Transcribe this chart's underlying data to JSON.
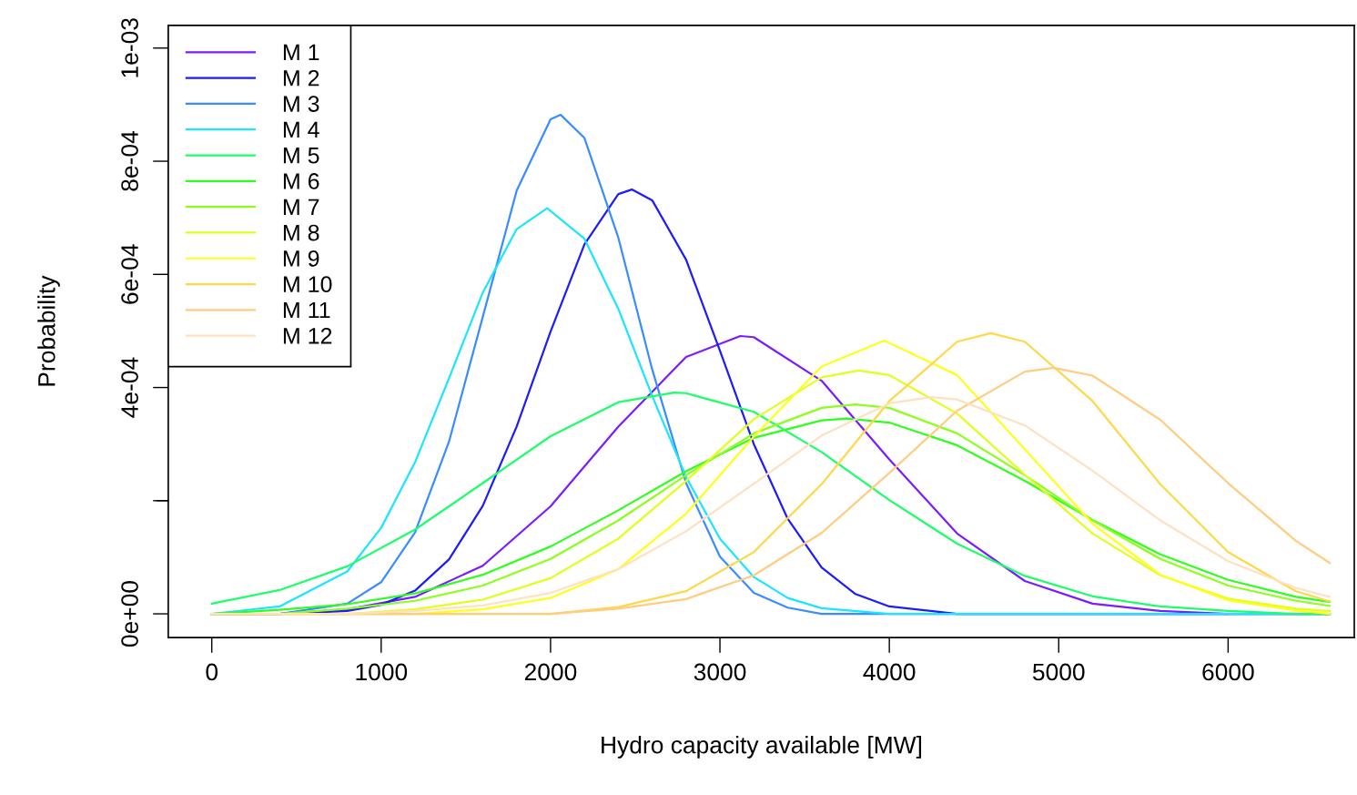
{
  "chart_data": {
    "type": "line",
    "xlabel": "Hydro capacity available [MW]",
    "ylabel": "Probability",
    "xlim": [
      -257,
      6745
    ],
    "ylim": [
      -4.2e-05,
      0.00104
    ],
    "xticks": [
      0,
      1000,
      2000,
      3000,
      4000,
      5000,
      6000
    ],
    "yticks": [
      {
        "value": 0,
        "label": "0e+00"
      },
      {
        "value": 0.0002,
        "label": null
      },
      {
        "value": 0.0004,
        "label": "4e-04"
      },
      {
        "value": 0.0006,
        "label": "6e-04"
      },
      {
        "value": 0.0008,
        "label": "8e-04"
      },
      {
        "value": 0.001,
        "label": "1e-03"
      }
    ],
    "grid": false,
    "legend": "top left",
    "marker": "none",
    "line_style": "solid",
    "series": [
      {
        "name": "M 1",
        "color": "#7a1cff",
        "x": [
          0,
          400,
          800,
          1200,
          1600,
          2000,
          2400,
          2800,
          3120,
          3200,
          3600,
          4000,
          4400,
          4800,
          5200,
          5600,
          6000,
          6400,
          6600
        ],
        "values": [
          0,
          0,
          8e-06,
          3e-05,
          8.5e-05,
          0.00019,
          0.000331,
          0.000454,
          0.000491,
          0.000489,
          0.000412,
          0.000273,
          0.000142,
          5.8e-05,
          1.8e-05,
          5e-06,
          0,
          0,
          0
        ]
      },
      {
        "name": "M 2",
        "color": "#1c1cff",
        "x": [
          0,
          400,
          800,
          1000,
          1200,
          1400,
          1600,
          1800,
          2000,
          2200,
          2400,
          2480,
          2600,
          2800,
          3000,
          3200,
          3400,
          3600,
          3800,
          4000,
          4400,
          4800,
          5200,
          5600,
          6000
        ],
        "values": [
          0,
          0,
          5e-06,
          1.6e-05,
          4.1e-05,
          9.6e-05,
          0.000191,
          0.000331,
          0.000499,
          0.000653,
          0.000742,
          0.00075,
          0.000731,
          0.000626,
          0.000465,
          0.0003,
          0.000168,
          8.2e-05,
          3.5e-05,
          1.3e-05,
          0,
          0,
          0,
          0,
          0
        ]
      },
      {
        "name": "M 3",
        "color": "#3a8cff",
        "x": [
          0,
          400,
          800,
          1000,
          1200,
          1400,
          1600,
          1800,
          2000,
          2060,
          2200,
          2400,
          2600,
          2800,
          3000,
          3200,
          3400,
          3600,
          4000,
          4400,
          4800,
          5200,
          5600,
          6000,
          6400,
          6600
        ],
        "values": [
          0,
          0,
          1.8e-05,
          5.6e-05,
          0.000144,
          0.000304,
          0.000525,
          0.000748,
          0.000874,
          0.000882,
          0.000841,
          0.000665,
          0.000432,
          0.000231,
          0.000101,
          3.7e-05,
          1.1e-05,
          0,
          0,
          0,
          0,
          0,
          0,
          0,
          0,
          0
        ]
      },
      {
        "name": "M 4",
        "color": "#1ce5ff",
        "x": [
          0,
          400,
          800,
          1000,
          1200,
          1400,
          1600,
          1800,
          1980,
          2200,
          2400,
          2600,
          2800,
          3000,
          3200,
          3400,
          3600,
          4000,
          4400,
          4800,
          5200,
          5600,
          6000,
          6400,
          6600
        ],
        "values": [
          0,
          1.3e-05,
          7.5e-05,
          0.000152,
          0.000268,
          0.000416,
          0.000568,
          0.00068,
          0.000717,
          0.000663,
          0.000539,
          0.000385,
          0.000242,
          0.000133,
          6.5e-05,
          2.8e-05,
          1e-05,
          0,
          0,
          0,
          0,
          0,
          0,
          0,
          0
        ]
      },
      {
        "name": "M 5",
        "color": "#1cff6a",
        "x": [
          0,
          400,
          800,
          1200,
          1600,
          2000,
          2400,
          2730,
          2800,
          3200,
          3600,
          4000,
          4400,
          4800,
          5200,
          5600,
          6000,
          6400,
          6600
        ],
        "values": [
          1.8e-05,
          4.2e-05,
          8.4e-05,
          0.000149,
          0.000231,
          0.000314,
          0.000374,
          0.000391,
          0.00039,
          0.000357,
          0.000286,
          0.000201,
          0.000124,
          6.7e-05,
          3.1e-05,
          1.3e-05,
          5e-06,
          0,
          0
        ]
      },
      {
        "name": "M 6",
        "color": "#2eff1c",
        "x": [
          0,
          400,
          800,
          1200,
          1600,
          2000,
          2400,
          2800,
          3200,
          3600,
          3750,
          4000,
          4400,
          4800,
          5200,
          5600,
          6000,
          6400,
          6600
        ],
        "values": [
          0,
          7e-06,
          1.7e-05,
          3.6e-05,
          6.9e-05,
          0.000119,
          0.000183,
          0.000252,
          0.000311,
          0.000342,
          0.000345,
          0.000338,
          0.000298,
          0.000235,
          0.000166,
          0.000105,
          6e-05,
          3e-05,
          2.1e-05
        ]
      },
      {
        "name": "M 7",
        "color": "#8cff1c",
        "x": [
          0,
          400,
          800,
          1200,
          1600,
          2000,
          2400,
          2800,
          3200,
          3600,
          3800,
          4000,
          4400,
          4800,
          5200,
          5600,
          6000,
          6400,
          6600
        ],
        "values": [
          0,
          0,
          9e-06,
          2.3e-05,
          5e-05,
          9.7e-05,
          0.000165,
          0.000245,
          0.000319,
          0.000364,
          0.00037,
          0.000364,
          0.000319,
          0.000245,
          0.000165,
          9.7e-05,
          5e-05,
          2.3e-05,
          1.4e-05
        ]
      },
      {
        "name": "M 8",
        "color": "#e0ff1c",
        "x": [
          0,
          400,
          800,
          1200,
          1600,
          2000,
          2400,
          2800,
          3200,
          3600,
          3820,
          4000,
          4400,
          4800,
          5200,
          5600,
          6000,
          6400,
          6600
        ],
        "values": [
          0,
          0,
          0,
          8e-06,
          2.5e-05,
          6.3e-05,
          0.000133,
          0.000235,
          0.000344,
          0.000418,
          0.00043,
          0.000422,
          0.000354,
          0.000246,
          0.000142,
          6.8e-05,
          2.7e-05,
          9e-06,
          5e-06
        ]
      },
      {
        "name": "M 9",
        "color": "#ffff1c",
        "x": [
          0,
          400,
          800,
          1200,
          1600,
          2000,
          2400,
          2800,
          3200,
          3600,
          3970,
          4400,
          4800,
          5200,
          5600,
          6000,
          6400,
          6600
        ],
        "values": [
          0,
          0,
          0,
          0,
          8e-06,
          2.8e-05,
          7.9e-05,
          0.000177,
          0.000313,
          0.000437,
          0.000483,
          0.000422,
          0.000291,
          0.000159,
          6.9e-05,
          2.4e-05,
          6e-06,
          0
        ]
      },
      {
        "name": "M 10",
        "color": "#ffd84a",
        "x": [
          0,
          400,
          800,
          1200,
          1600,
          2000,
          2400,
          2800,
          3200,
          3600,
          4000,
          4400,
          4600,
          4800,
          5200,
          5600,
          6000,
          6400,
          6600
        ],
        "values": [
          0,
          0,
          0,
          0,
          0,
          0,
          1.2e-05,
          4e-05,
          0.000109,
          0.000229,
          0.000376,
          0.000481,
          0.000496,
          0.000481,
          0.000376,
          0.000229,
          0.000109,
          4e-05,
          2.2e-05
        ]
      },
      {
        "name": "M 11",
        "color": "#ffcc80",
        "x": [
          0,
          400,
          800,
          1200,
          1600,
          2000,
          2400,
          2800,
          3200,
          3600,
          4000,
          4400,
          4800,
          4970,
          5200,
          5600,
          6000,
          6400,
          6600
        ],
        "values": [
          0,
          0,
          0,
          0,
          0,
          0,
          9e-06,
          2.6e-05,
          6.8e-05,
          0.000143,
          0.000249,
          0.000359,
          0.000428,
          0.000435,
          0.000421,
          0.000343,
          0.000231,
          0.000129,
          9e-05
        ]
      },
      {
        "name": "M 12",
        "color": "#ffe0c0",
        "x": [
          0,
          400,
          800,
          1200,
          1600,
          2000,
          2400,
          2800,
          3200,
          3600,
          4000,
          4250,
          4400,
          4800,
          5200,
          5600,
          6000,
          6400,
          6600
        ],
        "values": [
          0,
          0,
          0,
          5e-06,
          1.5e-05,
          3.7e-05,
          7.9e-05,
          0.000146,
          0.00023,
          0.000315,
          0.000372,
          0.000383,
          0.000379,
          0.000333,
          0.000253,
          0.000165,
          9.3e-05,
          4.6e-05,
          3e-05
        ]
      }
    ]
  }
}
